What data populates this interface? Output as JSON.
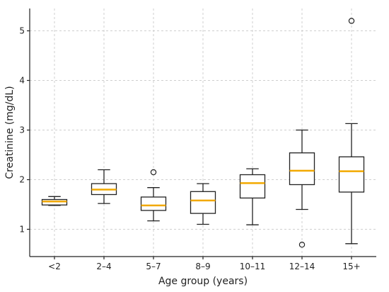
{
  "chart_data": {
    "type": "box",
    "xlabel": "Age group (years)",
    "ylabel": "Creatinine (mg/dL)",
    "ylim": [
      0.45,
      5.45
    ],
    "yticks": [
      1,
      2,
      3,
      4,
      5
    ],
    "grid": true,
    "median_color": "#f2a900",
    "categories": [
      "<2",
      "2–4",
      "5–7",
      "8–9",
      "10–11",
      "12–14",
      "15+"
    ],
    "boxes": [
      {
        "whislo": 1.48,
        "q1": 1.49,
        "med": 1.56,
        "q3": 1.6,
        "whishi": 1.66,
        "fliers": []
      },
      {
        "whislo": 1.52,
        "q1": 1.7,
        "med": 1.8,
        "q3": 1.92,
        "whishi": 2.2,
        "fliers": []
      },
      {
        "whislo": 1.17,
        "q1": 1.38,
        "med": 1.48,
        "q3": 1.65,
        "whishi": 1.84,
        "fliers": [
          2.15
        ]
      },
      {
        "whislo": 1.1,
        "q1": 1.32,
        "med": 1.58,
        "q3": 1.76,
        "whishi": 1.92,
        "fliers": []
      },
      {
        "whislo": 1.09,
        "q1": 1.63,
        "med": 1.93,
        "q3": 2.1,
        "whishi": 2.22,
        "fliers": []
      },
      {
        "whislo": 1.4,
        "q1": 1.9,
        "med": 2.18,
        "q3": 2.54,
        "whishi": 3.0,
        "fliers": [
          0.69
        ]
      },
      {
        "whislo": 0.71,
        "q1": 1.75,
        "med": 2.17,
        "q3": 2.46,
        "whishi": 3.13,
        "fliers": [
          5.2
        ]
      }
    ]
  }
}
